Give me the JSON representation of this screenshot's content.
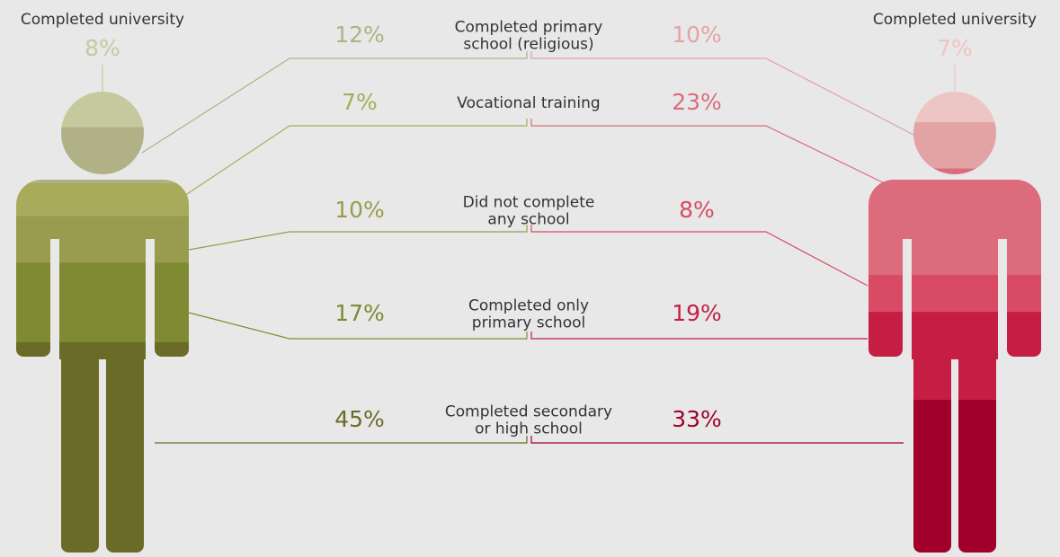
{
  "chart_data": {
    "type": "pictogram",
    "categories": [
      "Completed university",
      "Completed primary\nschool (religious)",
      "Vocational training",
      "Did not complete\nany school",
      "Completed only\nprimary school",
      "Completed secondary\nor high school"
    ],
    "series": [
      {
        "values": [
          8,
          12,
          7,
          10,
          17,
          45
        ],
        "value_labels": [
          "8%",
          "12%",
          "7%",
          "10%",
          "17%",
          "45%"
        ],
        "colors": [
          "#c6c99e",
          "#b0b186",
          "#a8ab5a",
          "#999c4e",
          "#808a32",
          "#6b6b28"
        ]
      },
      {
        "values": [
          7,
          10,
          23,
          8,
          19,
          33
        ],
        "value_labels": [
          "7%",
          "10%",
          "23%",
          "8%",
          "19%",
          "33%"
        ],
        "colors": [
          "#eec5c5",
          "#e2a3a5",
          "#dc6b7b",
          "#d94a64",
          "#c41e44",
          "#a0002a"
        ]
      }
    ]
  }
}
